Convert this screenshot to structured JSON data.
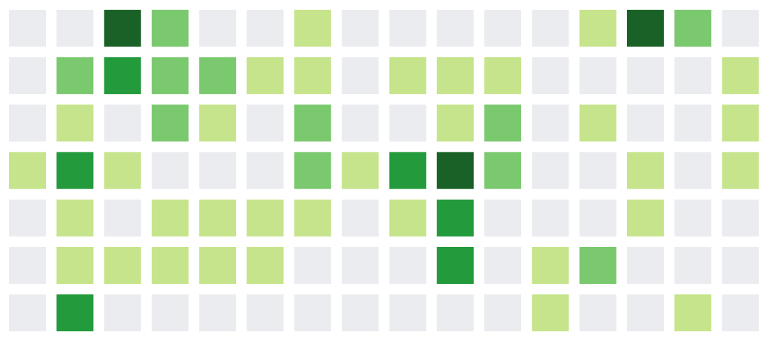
{
  "chart_data": {
    "type": "heatmap",
    "title": "",
    "xlabel": "",
    "ylabel": "",
    "rows": 7,
    "cols": 16,
    "levels": [
      0,
      1,
      2,
      3,
      4
    ],
    "colors": [
      "#ebecf0",
      "#c6e48b",
      "#7bc96f",
      "#239a3b",
      "#196127"
    ],
    "values": [
      [
        0,
        0,
        4,
        2,
        0,
        0,
        1,
        0,
        0,
        0,
        0,
        0,
        1,
        4,
        2,
        0
      ],
      [
        0,
        2,
        3,
        2,
        2,
        1,
        1,
        0,
        1,
        1,
        1,
        0,
        0,
        0,
        0,
        1
      ],
      [
        0,
        1,
        0,
        2,
        1,
        0,
        2,
        0,
        0,
        1,
        2,
        0,
        1,
        0,
        0,
        1
      ],
      [
        1,
        3,
        1,
        0,
        0,
        0,
        2,
        1,
        3,
        4,
        2,
        0,
        0,
        1,
        0,
        1
      ],
      [
        0,
        1,
        0,
        1,
        1,
        1,
        1,
        0,
        1,
        3,
        0,
        0,
        0,
        1,
        0,
        0
      ],
      [
        0,
        1,
        1,
        1,
        1,
        1,
        0,
        0,
        0,
        3,
        0,
        1,
        2,
        0,
        0,
        0
      ],
      [
        0,
        3,
        0,
        0,
        0,
        0,
        0,
        0,
        0,
        0,
        0,
        1,
        0,
        0,
        1,
        0
      ]
    ]
  }
}
